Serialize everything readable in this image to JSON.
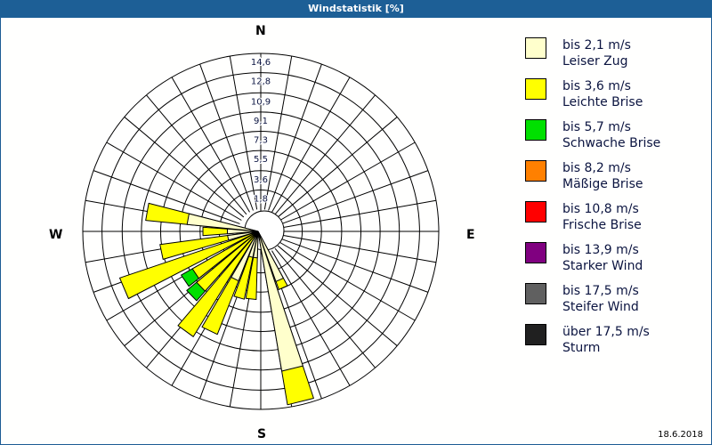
{
  "window": {
    "title": "Windstatistik [%]"
  },
  "compass": {
    "n": "N",
    "e": "E",
    "s": "S",
    "w": "W"
  },
  "date": "18.6.2018",
  "chart_data": {
    "type": "wind-rose",
    "title": "Windstatistik [%]",
    "unit": "%",
    "ring_labels": [
      "1,8",
      "3,6",
      "5,5",
      "7,3",
      "9,1",
      "10,9",
      "12,8",
      "14,6"
    ],
    "ring_values": [
      1.8,
      3.6,
      5.5,
      7.3,
      9.1,
      10.9,
      12.8,
      14.6
    ],
    "rmax": 14.6,
    "sector_width_deg": 10,
    "legend": [
      {
        "range": "bis 2,1 m/s",
        "name": "Leiser Zug",
        "color": "#ffffcc"
      },
      {
        "range": "bis 3,6 m/s",
        "name": "Leichte Brise",
        "color": "#ffff00"
      },
      {
        "range": "bis 5,7 m/s",
        "name": "Schwache Brise",
        "color": "#00e000"
      },
      {
        "range": "bis 8,2 m/s",
        "name": "Mäßige Brise",
        "color": "#ff8000"
      },
      {
        "range": "bis 10,8 m/s",
        "name": "Frische Brise",
        "color": "#ff0000"
      },
      {
        "range": "bis 13,9 m/s",
        "name": "Starker Wind",
        "color": "#800080"
      },
      {
        "range": "bis 17,5 m/s",
        "name": "Steifer Wind",
        "color": "#606060"
      },
      {
        "range": "über 17,5 m/s",
        "name": "Sturm",
        "color": "#202020"
      }
    ],
    "sectors": [
      {
        "dir": 280,
        "cumulative": [
          4.6,
          8.5
        ]
      },
      {
        "dir": 270,
        "cumulative": [
          0.8,
          3.1
        ]
      },
      {
        "dir": 258,
        "cumulative": [
          0.8,
          7.2
        ]
      },
      {
        "dir": 247,
        "cumulative": [
          0.0,
          11.6
        ]
      },
      {
        "dir": 236,
        "cumulative": [
          0.0,
          5.0,
          6.2
        ]
      },
      {
        "dir": 226,
        "cumulative": [
          0.0,
          5.4,
          6.6
        ]
      },
      {
        "dir": 216,
        "cumulative": [
          0.0,
          9.5
        ]
      },
      {
        "dir": 206,
        "cumulative": [
          2.9,
          8.3
        ]
      },
      {
        "dir": 196,
        "cumulative": [
          0.4,
          4.4
        ]
      },
      {
        "dir": 186,
        "cumulative": [
          0.4,
          4.3
        ]
      },
      {
        "dir": 166,
        "cumulative": [
          11.2,
          14.4
        ]
      },
      {
        "dir": 156,
        "cumulative": [
          2.9,
          3.7
        ]
      }
    ]
  }
}
